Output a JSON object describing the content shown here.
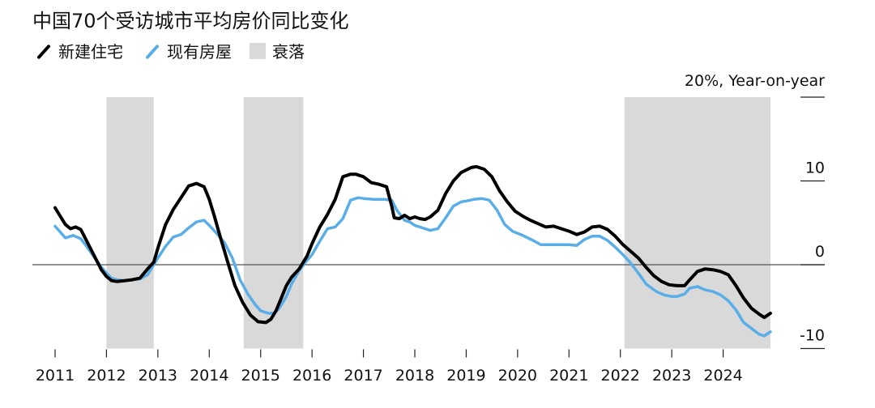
{
  "chart_data": {
    "type": "line",
    "title": "中国70个受访城市平均房价同比变化",
    "ylabel": "Year-on-year",
    "y_unit_label": "20%, Year-on-year",
    "ylim": [
      -10,
      20
    ],
    "xlim": [
      2011.0,
      2025.0
    ],
    "x_ticks": [
      2011,
      2012,
      2013,
      2014,
      2015,
      2016,
      2017,
      2018,
      2019,
      2020,
      2021,
      2022,
      2023,
      2024
    ],
    "x_tick_labels": [
      "2011",
      "2012",
      "2013",
      "2014",
      "2015",
      "2016",
      "2017",
      "2018",
      "2019",
      "2020",
      "2021",
      "2022",
      "2023",
      "2024"
    ],
    "y_ticks": [
      -10,
      0,
      10,
      20
    ],
    "y_tick_labels": [
      "-10",
      "0",
      "10",
      ""
    ],
    "grid": false,
    "legend_position": "top-left",
    "legend": [
      {
        "name": "新建住宅",
        "kind": "line",
        "color": "#000000"
      },
      {
        "name": "现有房屋",
        "kind": "line",
        "color": "#5aaee8"
      },
      {
        "name": "衰落",
        "kind": "box",
        "color": "#d9d9d9"
      }
    ],
    "shaded_periods": [
      {
        "start": 2012.0,
        "end": 2012.92
      },
      {
        "start": 2014.67,
        "end": 2015.83
      },
      {
        "start": 2022.08,
        "end": 2024.92
      }
    ],
    "series": [
      {
        "name": "新建住宅",
        "color": "#000000",
        "x": [
          2011.0,
          2011.1,
          2011.2,
          2011.3,
          2011.4,
          2011.5,
          2011.6,
          2011.75,
          2011.9,
          2012.0,
          2012.1,
          2012.2,
          2012.35,
          2012.5,
          2012.65,
          2012.8,
          2012.92,
          2013.0,
          2013.15,
          2013.3,
          2013.45,
          2013.6,
          2013.75,
          2013.9,
          2014.0,
          2014.1,
          2014.2,
          2014.35,
          2014.5,
          2014.65,
          2014.8,
          2014.95,
          2015.1,
          2015.2,
          2015.3,
          2015.4,
          2015.5,
          2015.6,
          2015.75,
          2015.9,
          2016.0,
          2016.15,
          2016.3,
          2016.45,
          2016.6,
          2016.75,
          2016.85,
          2017.0,
          2017.15,
          2017.3,
          2017.45,
          2017.55,
          2017.6,
          2017.7,
          2017.8,
          2017.9,
          2018.0,
          2018.1,
          2018.2,
          2018.3,
          2018.45,
          2018.6,
          2018.75,
          2018.9,
          2019.0,
          2019.1,
          2019.2,
          2019.35,
          2019.5,
          2019.65,
          2019.8,
          2019.95,
          2020.1,
          2020.25,
          2020.4,
          2020.55,
          2020.7,
          2020.85,
          2021.0,
          2021.15,
          2021.3,
          2021.45,
          2021.6,
          2021.75,
          2021.9,
          2022.05,
          2022.2,
          2022.35,
          2022.5,
          2022.65,
          2022.8,
          2022.95,
          2023.1,
          2023.25,
          2023.35,
          2023.5,
          2023.65,
          2023.8,
          2023.95,
          2024.1,
          2024.25,
          2024.4,
          2024.55,
          2024.7,
          2024.8,
          2024.92
        ],
        "values": [
          6.8,
          5.8,
          4.8,
          4.3,
          4.5,
          4.2,
          3.0,
          1.2,
          -0.6,
          -1.4,
          -1.9,
          -2.0,
          -1.9,
          -1.8,
          -1.6,
          -0.5,
          0.3,
          2.0,
          4.8,
          6.6,
          8.0,
          9.4,
          9.7,
          9.3,
          7.8,
          5.8,
          3.6,
          0.5,
          -2.5,
          -4.5,
          -6.0,
          -6.8,
          -6.9,
          -6.5,
          -5.5,
          -4.0,
          -2.5,
          -1.5,
          -0.5,
          1.0,
          2.5,
          4.5,
          6.0,
          7.8,
          10.5,
          10.8,
          10.8,
          10.5,
          9.8,
          9.6,
          9.3,
          7.0,
          5.6,
          5.5,
          5.9,
          5.5,
          5.7,
          5.5,
          5.4,
          5.7,
          6.5,
          8.5,
          10.0,
          11.0,
          11.3,
          11.6,
          11.7,
          11.4,
          10.5,
          8.8,
          7.5,
          6.4,
          5.8,
          5.3,
          4.9,
          4.5,
          4.6,
          4.3,
          4.0,
          3.6,
          3.9,
          4.5,
          4.6,
          4.2,
          3.4,
          2.4,
          1.6,
          0.8,
          -0.3,
          -1.3,
          -2.0,
          -2.4,
          -2.5,
          -2.5,
          -1.8,
          -0.8,
          -0.5,
          -0.6,
          -0.8,
          -1.2,
          -2.5,
          -4.0,
          -5.2,
          -5.9,
          -6.3,
          -5.8
        ]
      },
      {
        "name": "现有房屋",
        "color": "#5aaee8",
        "x": [
          2011.0,
          2011.1,
          2011.2,
          2011.35,
          2011.5,
          2011.6,
          2011.75,
          2011.9,
          2012.0,
          2012.1,
          2012.2,
          2012.35,
          2012.5,
          2012.65,
          2012.8,
          2012.92,
          2013.0,
          2013.15,
          2013.3,
          2013.45,
          2013.6,
          2013.75,
          2013.9,
          2014.0,
          2014.15,
          2014.3,
          2014.45,
          2014.6,
          2014.75,
          2014.9,
          2015.0,
          2015.15,
          2015.25,
          2015.35,
          2015.5,
          2015.6,
          2015.75,
          2015.9,
          2016.0,
          2016.15,
          2016.3,
          2016.45,
          2016.6,
          2016.75,
          2016.9,
          2017.0,
          2017.2,
          2017.4,
          2017.55,
          2017.65,
          2017.8,
          2017.9,
          2018.0,
          2018.15,
          2018.3,
          2018.45,
          2018.6,
          2018.75,
          2018.9,
          2019.0,
          2019.15,
          2019.3,
          2019.45,
          2019.6,
          2019.75,
          2019.9,
          2020.1,
          2020.3,
          2020.45,
          2020.6,
          2020.75,
          2020.9,
          2021.0,
          2021.15,
          2021.3,
          2021.45,
          2021.6,
          2021.75,
          2021.9,
          2022.05,
          2022.2,
          2022.35,
          2022.5,
          2022.7,
          2022.85,
          2023.0,
          2023.1,
          2023.25,
          2023.35,
          2023.5,
          2023.65,
          2023.8,
          2023.95,
          2024.1,
          2024.25,
          2024.4,
          2024.55,
          2024.7,
          2024.8,
          2024.92
        ],
        "values": [
          4.6,
          3.9,
          3.2,
          3.5,
          3.1,
          2.3,
          1.0,
          -0.3,
          -1.0,
          -1.6,
          -1.8,
          -1.9,
          -1.8,
          -1.7,
          -1.2,
          0.0,
          0.8,
          2.2,
          3.3,
          3.6,
          4.4,
          5.1,
          5.3,
          4.7,
          3.7,
          2.6,
          0.8,
          -1.8,
          -3.5,
          -4.8,
          -5.5,
          -5.8,
          -5.8,
          -5.3,
          -3.8,
          -2.3,
          -0.7,
          0.5,
          1.2,
          2.8,
          4.3,
          4.5,
          5.5,
          7.7,
          8.0,
          7.9,
          7.8,
          7.8,
          7.7,
          6.5,
          5.3,
          5.1,
          4.7,
          4.4,
          4.1,
          4.3,
          5.6,
          7.0,
          7.5,
          7.6,
          7.8,
          7.9,
          7.7,
          6.5,
          4.8,
          4.0,
          3.5,
          2.9,
          2.4,
          2.4,
          2.4,
          2.4,
          2.4,
          2.3,
          3.0,
          3.4,
          3.4,
          2.9,
          2.1,
          1.2,
          0.2,
          -1.0,
          -2.3,
          -3.2,
          -3.6,
          -3.8,
          -3.8,
          -3.5,
          -2.8,
          -2.6,
          -3.0,
          -3.2,
          -3.6,
          -4.3,
          -5.4,
          -6.9,
          -7.6,
          -8.3,
          -8.5,
          -8.0
        ]
      }
    ]
  }
}
